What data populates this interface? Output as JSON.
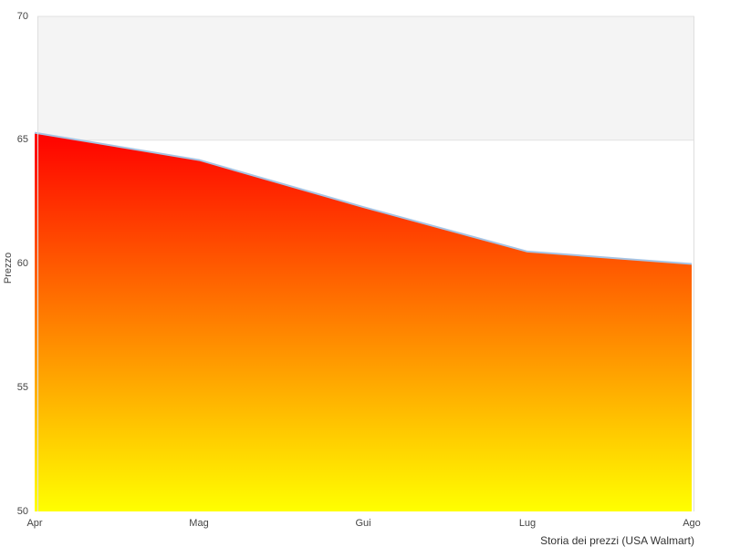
{
  "chart_data": {
    "type": "area",
    "title": "Storia dei prezzi (USA Walmart)",
    "xlabel": "",
    "ylabel": "Prezzo",
    "categories": [
      "Apr",
      "Mag",
      "Gui",
      "Lug",
      "Ago"
    ],
    "values": [
      65.3,
      64.2,
      62.3,
      60.5,
      60.0
    ],
    "series_name": "Prezzo",
    "ylim": [
      50,
      70
    ],
    "yticks": [
      70,
      65,
      60,
      55,
      50
    ],
    "grid": "off",
    "legend": "none",
    "band": {
      "from": 65,
      "to": 70,
      "fill": "#f4f4f4",
      "border": "#e2e2e2"
    },
    "colors": {
      "area_gradient_top": "#ff0000",
      "area_gradient_bottom": "#ffff00",
      "line": "#a6c3e3",
      "plot_border": "#dedede",
      "tick_text": "#444444",
      "title_text": "#333333",
      "background": "#ffffff"
    }
  }
}
